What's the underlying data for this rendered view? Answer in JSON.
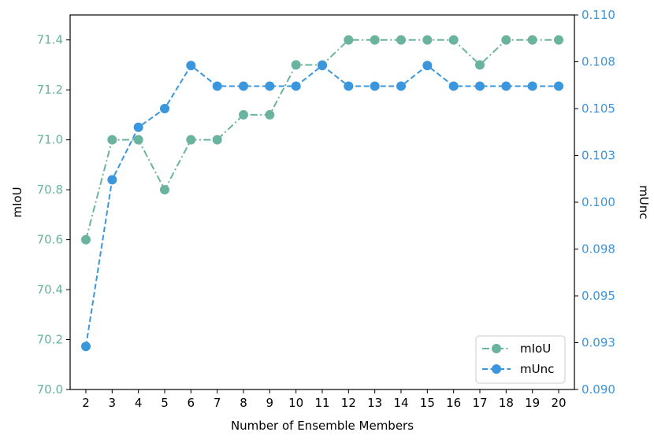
{
  "chart_data": {
    "type": "line",
    "xlabel": "Number of Ensemble Members",
    "ylabel_left": "mIoU",
    "ylabel_right": "mUnc",
    "x": [
      2,
      3,
      4,
      5,
      6,
      7,
      8,
      9,
      10,
      11,
      12,
      13,
      14,
      15,
      16,
      17,
      18,
      19,
      20
    ],
    "x_ticks": [
      "2",
      "3",
      "4",
      "5",
      "6",
      "7",
      "8",
      "9",
      "10",
      "11",
      "12",
      "13",
      "14",
      "15",
      "16",
      "17",
      "18",
      "19",
      "20"
    ],
    "ylim_left": [
      70.0,
      71.5
    ],
    "ylim_right": [
      0.09,
      0.11
    ],
    "y_ticks_left": [
      "70.0",
      "70.2",
      "70.4",
      "70.6",
      "70.8",
      "71.0",
      "71.2",
      "71.4"
    ],
    "y_tick_values_left": [
      70.0,
      70.2,
      70.4,
      70.6,
      70.8,
      71.0,
      71.2,
      71.4
    ],
    "y_ticks_right": [
      "0.090",
      "0.093",
      "0.095",
      "0.098",
      "0.100",
      "0.103",
      "0.105",
      "0.108",
      "0.110"
    ],
    "y_tick_values_right": [
      0.09,
      0.0925,
      0.095,
      0.0975,
      0.1,
      0.1025,
      0.105,
      0.1075,
      0.11
    ],
    "series": [
      {
        "name": "mIoU",
        "axis": "left",
        "color": "#6ab39e",
        "linestyle": "dashdot",
        "values": [
          70.6,
          71.0,
          71.0,
          70.8,
          71.0,
          71.0,
          71.1,
          71.1,
          71.3,
          71.3,
          71.4,
          71.4,
          71.4,
          71.4,
          71.4,
          71.3,
          71.4,
          71.4,
          71.4
        ]
      },
      {
        "name": "mUnc",
        "axis": "right",
        "color": "#3a96dd",
        "linestyle": "dashed",
        "values": [
          0.0923,
          0.1012,
          0.104,
          0.105,
          0.1073,
          0.1062,
          0.1062,
          0.1062,
          0.1062,
          0.1073,
          0.1062,
          0.1062,
          0.1062,
          0.1073,
          0.1062,
          0.1062,
          0.1062,
          0.1062,
          0.1062
        ]
      }
    ],
    "legend_position": "bottom-right",
    "grid": false
  }
}
